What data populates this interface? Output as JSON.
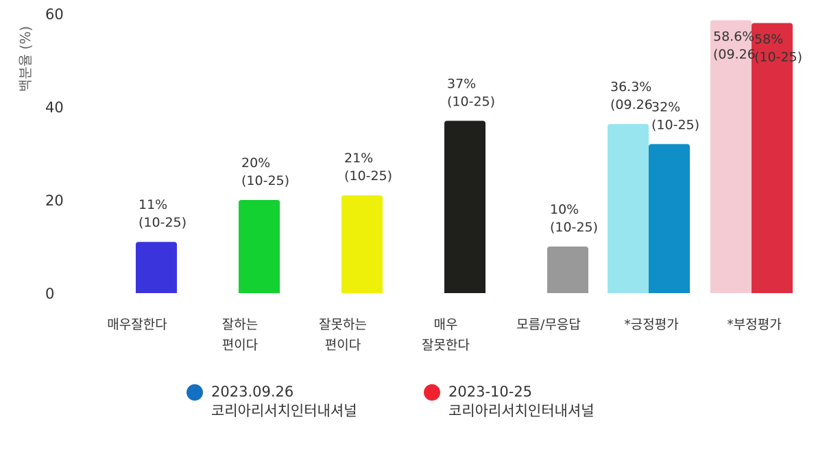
{
  "chart_data": {
    "type": "bar",
    "ylabel": "백분율 (%)",
    "ylim": [
      0,
      60
    ],
    "yticks": [
      0,
      20,
      40,
      60
    ],
    "categories": [
      [
        "매우잘한다"
      ],
      [
        "잘하는",
        "편이다"
      ],
      [
        "잘못하는",
        "편이다"
      ],
      [
        "매우",
        "잘못한다"
      ],
      [
        "모름/무응답"
      ],
      [
        "*긍정평가"
      ],
      [
        "*부정평가"
      ]
    ],
    "bars": [
      {
        "category": 0,
        "value": 11,
        "label": [
          "11%",
          "(10-25)"
        ],
        "color": "#3a34dc",
        "slot": "single"
      },
      {
        "category": 1,
        "value": 20,
        "label": [
          "20%",
          "(10-25)"
        ],
        "color": "#12d130",
        "slot": "single"
      },
      {
        "category": 2,
        "value": 21,
        "label": [
          "21%",
          "(10-25)"
        ],
        "color": "#eef00a",
        "slot": "single"
      },
      {
        "category": 3,
        "value": 37,
        "label": [
          "37%",
          "(10-25)"
        ],
        "color": "#1f201c",
        "slot": "single"
      },
      {
        "category": 4,
        "value": 10,
        "label": [
          "10%",
          "(10-25)"
        ],
        "color": "#999999",
        "slot": "single"
      },
      {
        "category": 5,
        "value": 36.3,
        "label": [
          "36.3%",
          "(09.26"
        ],
        "color": "#98e4ef",
        "slot": "left"
      },
      {
        "category": 5,
        "value": 32,
        "label": [
          "32%",
          "(10-25)"
        ],
        "color": "#0f8ec8",
        "slot": "right"
      },
      {
        "category": 6,
        "value": 58.6,
        "label": [
          "58.6%",
          "(09.26"
        ],
        "color": "#f4cbd3",
        "slot": "left"
      },
      {
        "category": 6,
        "value": 58,
        "label": [
          "58%",
          "(10-25)"
        ],
        "color": "#dc2e40",
        "slot": "right"
      }
    ],
    "legend": [
      {
        "name": "2023.09.26",
        "source": "코리아리서치인터내셔널",
        "color": "#1470c0"
      },
      {
        "name": "2023-10-25",
        "source": "코리아리서치인터내셔널",
        "color": "#f02232"
      }
    ]
  }
}
